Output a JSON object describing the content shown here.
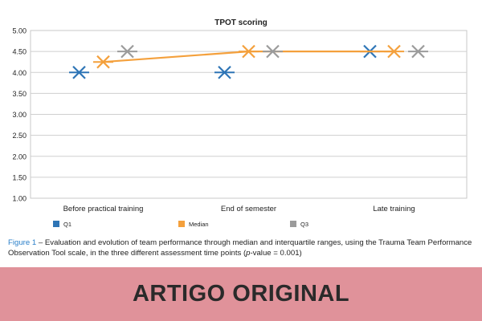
{
  "chart_data": {
    "type": "scatter",
    "title": "TPOT scoring",
    "xlabel": "",
    "ylabel": "",
    "categories": [
      "Before practical training",
      "End of semester",
      "Late training"
    ],
    "ylim": [
      1.0,
      5.0
    ],
    "yticks": [
      "1.00",
      "1.50",
      "2.00",
      "2.50",
      "3.00",
      "3.50",
      "4.00",
      "4.50",
      "5.00"
    ],
    "grid": true,
    "legend_position": "bottom",
    "series": [
      {
        "name": "Q1",
        "values": [
          4.0,
          4.0,
          4.5
        ],
        "color": "#2e75b6",
        "marker": "x"
      },
      {
        "name": "Median",
        "values": [
          4.25,
          4.5,
          4.5
        ],
        "color": "#f4a03c",
        "marker": "x",
        "line": true
      },
      {
        "name": "Q3",
        "values": [
          4.5,
          4.5,
          4.5
        ],
        "color": "#9b9b9b",
        "marker": "x"
      }
    ]
  },
  "caption": {
    "figure_label": "Figure 1",
    "text_before_italic": " – Evaluation and evolution of team performance through median and interquartile ranges, using the Trauma Team Performance Observation Tool scale, in the three different assessment time points (",
    "italic": "p",
    "text_after_italic": "-value = 0.001)"
  },
  "banner": {
    "text": "ARTIGO ORIGINAL",
    "color": "#e0929a"
  }
}
